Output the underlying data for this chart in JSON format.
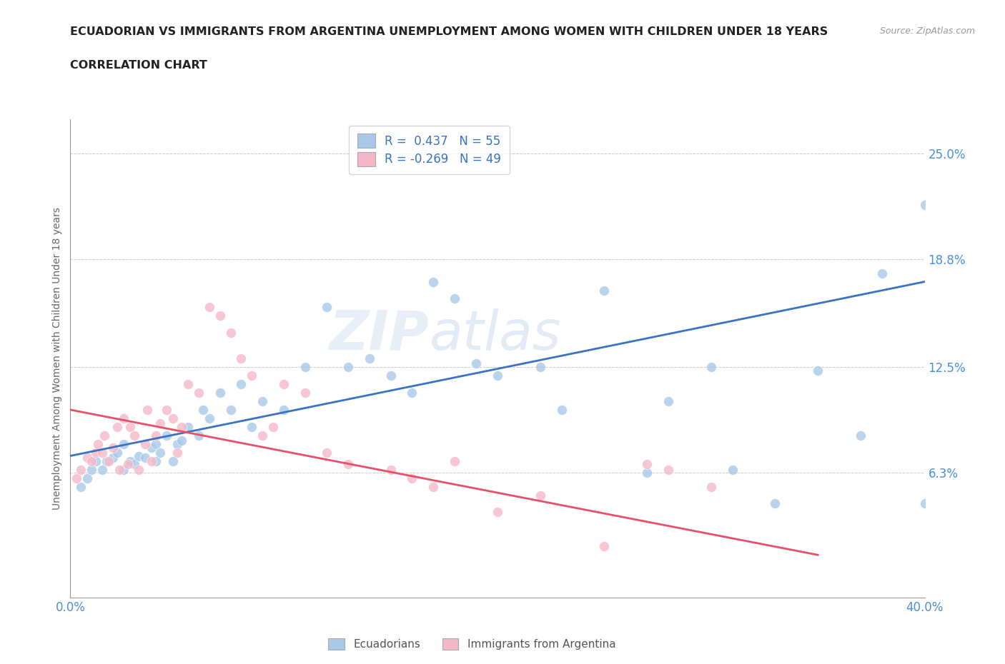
{
  "title_line1": "ECUADORIAN VS IMMIGRANTS FROM ARGENTINA UNEMPLOYMENT AMONG WOMEN WITH CHILDREN UNDER 18 YEARS",
  "title_line2": "CORRELATION CHART",
  "source": "Source: ZipAtlas.com",
  "ylabel": "Unemployment Among Women with Children Under 18 years",
  "xlim": [
    0.0,
    0.4
  ],
  "ylim": [
    -0.01,
    0.27
  ],
  "yticks": [
    0.0,
    0.063,
    0.125,
    0.188,
    0.25
  ],
  "ytick_labels": [
    "",
    "6.3%",
    "12.5%",
    "18.8%",
    "25.0%"
  ],
  "xticks": [
    0.0,
    0.1,
    0.2,
    0.3,
    0.4
  ],
  "xtick_labels": [
    "0.0%",
    "",
    "",
    "",
    "40.0%"
  ],
  "blue_color": "#a8c8e8",
  "pink_color": "#f4b8c8",
  "blue_line_color": "#3a72c4",
  "pink_line_color": "#e8506a",
  "legend_r1": "R =  0.437   N = 55",
  "legend_r2": "R = -0.269   N = 49",
  "legend_label1": "Ecuadorians",
  "legend_label2": "Immigrants from Argentina",
  "watermark_zip": "ZIP",
  "watermark_atlas": "atlas",
  "title_fontsize": 12,
  "source_color": "#999999",
  "tick_label_color": "#4a90d9",
  "blue_scatter_x": [
    0.005,
    0.008,
    0.01,
    0.012,
    0.015,
    0.017,
    0.02,
    0.022,
    0.025,
    0.025,
    0.028,
    0.03,
    0.032,
    0.035,
    0.038,
    0.04,
    0.04,
    0.042,
    0.045,
    0.048,
    0.05,
    0.052,
    0.055,
    0.06,
    0.062,
    0.065,
    0.07,
    0.075,
    0.08,
    0.085,
    0.09,
    0.1,
    0.11,
    0.12,
    0.13,
    0.14,
    0.15,
    0.16,
    0.17,
    0.18,
    0.19,
    0.2,
    0.22,
    0.23,
    0.25,
    0.27,
    0.28,
    0.3,
    0.31,
    0.33,
    0.35,
    0.37,
    0.38,
    0.4,
    0.4
  ],
  "blue_scatter_y": [
    0.055,
    0.06,
    0.065,
    0.07,
    0.065,
    0.07,
    0.072,
    0.075,
    0.065,
    0.08,
    0.07,
    0.068,
    0.073,
    0.072,
    0.078,
    0.07,
    0.08,
    0.075,
    0.085,
    0.07,
    0.08,
    0.082,
    0.09,
    0.085,
    0.1,
    0.095,
    0.11,
    0.1,
    0.115,
    0.09,
    0.105,
    0.1,
    0.125,
    0.16,
    0.125,
    0.13,
    0.12,
    0.11,
    0.175,
    0.165,
    0.127,
    0.12,
    0.125,
    0.1,
    0.17,
    0.063,
    0.105,
    0.125,
    0.065,
    0.045,
    0.123,
    0.085,
    0.18,
    0.22,
    0.045
  ],
  "pink_scatter_x": [
    0.003,
    0.005,
    0.008,
    0.01,
    0.012,
    0.013,
    0.015,
    0.016,
    0.018,
    0.02,
    0.022,
    0.023,
    0.025,
    0.027,
    0.028,
    0.03,
    0.032,
    0.035,
    0.036,
    0.038,
    0.04,
    0.042,
    0.045,
    0.048,
    0.05,
    0.052,
    0.055,
    0.06,
    0.065,
    0.07,
    0.075,
    0.08,
    0.085,
    0.09,
    0.095,
    0.1,
    0.11,
    0.12,
    0.13,
    0.15,
    0.16,
    0.17,
    0.18,
    0.2,
    0.22,
    0.25,
    0.27,
    0.28,
    0.3
  ],
  "pink_scatter_y": [
    0.06,
    0.065,
    0.072,
    0.07,
    0.075,
    0.08,
    0.075,
    0.085,
    0.07,
    0.078,
    0.09,
    0.065,
    0.095,
    0.068,
    0.09,
    0.085,
    0.065,
    0.08,
    0.1,
    0.07,
    0.085,
    0.092,
    0.1,
    0.095,
    0.075,
    0.09,
    0.115,
    0.11,
    0.16,
    0.155,
    0.145,
    0.13,
    0.12,
    0.085,
    0.09,
    0.115,
    0.11,
    0.075,
    0.068,
    0.065,
    0.06,
    0.055,
    0.07,
    0.04,
    0.05,
    0.02,
    0.068,
    0.065,
    0.055
  ],
  "blue_trend": [
    0.0,
    0.4,
    0.073,
    0.175
  ],
  "pink_trend": [
    0.0,
    0.35,
    0.1,
    0.015
  ]
}
